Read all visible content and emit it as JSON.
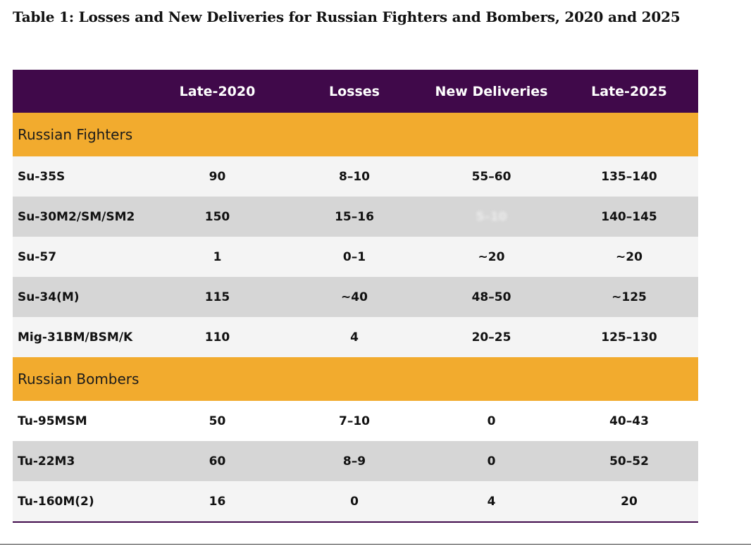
{
  "caption": "Table 1: Losses and New Deliveries for Russian Fighters and Bombers, 2020 and 2025",
  "headers": [
    "",
    "Late-2020",
    "Losses",
    "New Deliveries",
    "Late-2025"
  ],
  "sections": [
    {
      "title": "Russian Fighters",
      "rows": [
        {
          "name": "Su-35S",
          "late2020": "90",
          "losses": "8–10",
          "deliveries": "55–60",
          "late2025": "135–140"
        },
        {
          "name": "Su-30M2/SM/SM2",
          "late2020": "150",
          "losses": "15–16",
          "deliveries": "5–10",
          "late2025": "140–145"
        },
        {
          "name": "Su-57",
          "late2020": "1",
          "losses": "0–1",
          "deliveries": "~20",
          "late2025": "~20"
        },
        {
          "name": "Su-34(M)",
          "late2020": "115",
          "losses": "~40",
          "deliveries": "48–50",
          "late2025": "~125"
        },
        {
          "name": "Mig-31BM/BSM/K",
          "late2020": "110",
          "losses": "4",
          "deliveries": "20–25",
          "late2025": "125–130"
        }
      ]
    },
    {
      "title": "Russian Bombers",
      "rows": [
        {
          "name": "Tu-95MSM",
          "late2020": "50",
          "losses": "7–10",
          "deliveries": "0",
          "late2025": "40–43"
        },
        {
          "name": "Tu-22M3",
          "late2020": "60",
          "losses": "8–9",
          "deliveries": "0",
          "late2025": "50–52"
        },
        {
          "name": "Tu-160M(2)",
          "late2020": "16",
          "losses": "0",
          "deliveries": "4",
          "late2025": "20"
        }
      ]
    }
  ]
}
